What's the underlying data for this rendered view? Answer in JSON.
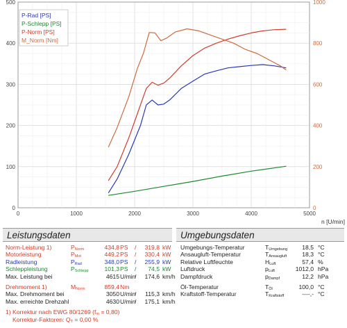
{
  "chart_data": {
    "type": "line",
    "xlabel": "n [U/min]",
    "xlim": [
      0,
      5000
    ],
    "xticks": [
      0,
      1000,
      2000,
      3000,
      4000,
      5000
    ],
    "ylim_left": [
      0,
      500
    ],
    "yticks_left": [
      0,
      100,
      200,
      300,
      400,
      500
    ],
    "ylim_right": [
      0,
      1000
    ],
    "yticks_right": [
      0,
      200,
      400,
      600,
      800,
      1000
    ],
    "grid": true,
    "legend_position": "top-left",
    "legend": [
      "P-Rad [PS]",
      "P-Schlepp [PS]",
      "P-Norm [PS]",
      "M_Norm [Nm]"
    ],
    "series": [
      {
        "name": "P-Rad [PS]",
        "color": "#2838b8",
        "axis": "left",
        "x": [
          1550,
          1700,
          1900,
          2100,
          2200,
          2300,
          2400,
          2500,
          2600,
          2800,
          3000,
          3200,
          3400,
          3600,
          3800,
          4000,
          4200,
          4400,
          4600
        ],
        "y": [
          36,
          70,
          130,
          200,
          250,
          262,
          250,
          252,
          262,
          290,
          308,
          325,
          333,
          340,
          343,
          346,
          348,
          345,
          340
        ]
      },
      {
        "name": "P-Schlepp [PS]",
        "color": "#1a8a2a",
        "axis": "left",
        "x": [
          1550,
          2000,
          2500,
          3000,
          3500,
          4000,
          4600
        ],
        "y": [
          30,
          40,
          52,
          64,
          77,
          89,
          101
        ]
      },
      {
        "name": "P-Norm [PS]",
        "color": "#d23c28",
        "axis": "left",
        "x": [
          1550,
          1700,
          1900,
          2100,
          2200,
          2300,
          2400,
          2500,
          2600,
          2800,
          3000,
          3200,
          3400,
          3600,
          3800,
          4000,
          4200,
          4400,
          4600
        ],
        "y": [
          66,
          100,
          170,
          250,
          290,
          305,
          298,
          303,
          315,
          345,
          370,
          388,
          400,
          410,
          418,
          425,
          430,
          433,
          434
        ]
      },
      {
        "name": "M_Norm [Nm]",
        "color": "#cf6a3e",
        "axis": "right",
        "x": [
          1550,
          1700,
          1900,
          2050,
          2150,
          2250,
          2350,
          2450,
          2550,
          2700,
          2900,
          3100,
          3300,
          3500,
          3700,
          3900,
          4100,
          4300,
          4500,
          4600
        ],
        "y": [
          295,
          390,
          540,
          680,
          750,
          852,
          850,
          812,
          825,
          855,
          870,
          860,
          840,
          820,
          800,
          770,
          750,
          720,
          690,
          670
        ]
      }
    ]
  },
  "left": {
    "title": "Leistungsdaten",
    "rows": [
      {
        "label": "Norm-Leistung",
        "mark": "1)",
        "sym": "P",
        "sub": "Norm",
        "v1": "434,8",
        "u1": "PS",
        "v2": "319,8",
        "u2": "kW",
        "color": "red"
      },
      {
        "label": "Motorleistung",
        "mark": "",
        "sym": "P",
        "sub": "Mot",
        "v1": "449,2",
        "u1": "PS",
        "v2": "330,4",
        "u2": "kW",
        "color": "red"
      },
      {
        "label": "Radleistung",
        "mark": "",
        "sym": "P",
        "sub": "Rad",
        "v1": "348,0",
        "u1": "PS",
        "v2": "255,9",
        "u2": "kW",
        "color": "blue"
      },
      {
        "label": "Schleppleistung",
        "mark": "",
        "sym": "P",
        "sub": "Schlepp",
        "v1": "101,3",
        "u1": "PS",
        "v2": "74,5",
        "u2": "kW",
        "color": "green"
      },
      {
        "label": "Max. Leistung bei",
        "mark": "",
        "sym": "",
        "sub": "",
        "v1": "4615",
        "u1": "U/min",
        "v2": "174,6",
        "u2": "km/h",
        "color": "dark"
      }
    ],
    "rows2": [
      {
        "label": "Drehmoment",
        "mark": "1)",
        "sym": "M",
        "sub": "Norm",
        "v1": "859,4",
        "u1": "Nm",
        "v2": "",
        "u2": "",
        "color": "red"
      },
      {
        "label": "Max. Drehmoment bei",
        "mark": "",
        "sym": "",
        "sub": "",
        "v1": "3050",
        "u1": "U/min",
        "v2": "115,3",
        "u2": "km/h",
        "color": "dark"
      },
      {
        "label": "Max. erreichte Drehzahl",
        "mark": "",
        "sym": "",
        "sub": "",
        "v1": "4630",
        "u1": "U/min",
        "v2": "175,1",
        "u2": "km/h",
        "color": "dark"
      }
    ],
    "footnote1": "1) Korrektur nach EWG 80/1269 (f",
    "footnote1_sub": "m",
    "footnote1_end": " = 0,80)",
    "footnote2": "Korrektur-Faktoren: Q",
    "footnote2_sub": "T",
    "footnote2_end": " = 0,00 %"
  },
  "right": {
    "title": "Umgebungsdaten",
    "rows": [
      {
        "label": "Umgebungs-Temperatur",
        "sym": "T",
        "sub": "Umgebung",
        "val": "18,5",
        "unit": "°C"
      },
      {
        "label": "Ansaugluft-Temperatur",
        "sym": "T",
        "sub": "Ansaugluft",
        "val": "18,3",
        "unit": "°C"
      },
      {
        "label": "Relative Luftfeuchte",
        "sym": "H",
        "sub": "Luft",
        "val": "57,4",
        "unit": "%"
      },
      {
        "label": "Luftdruck",
        "sym": "p",
        "sub": "Luft",
        "val": "1012,0",
        "unit": "hPa"
      },
      {
        "label": "Dampfdruck",
        "sym": "p",
        "sub": "Dampf",
        "val": "12,2",
        "unit": "hPa"
      }
    ],
    "rows2": [
      {
        "label": "Öl-Temperatur",
        "sym": "T",
        "sub": "Öl",
        "val": "100,0",
        "unit": "°C"
      },
      {
        "label": "Kraftstoff-Temperatur",
        "sym": "T",
        "sub": "Kraftstoff",
        "val": "----,-",
        "unit": "°C"
      }
    ]
  }
}
